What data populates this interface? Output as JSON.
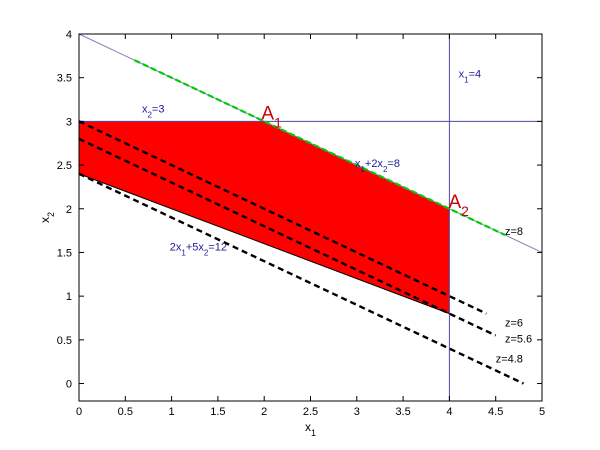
{
  "chart_data": {
    "type": "line",
    "title": "",
    "xlabel": "x",
    "xlabel_sub": "1",
    "ylabel": "x",
    "ylabel_sub": "2",
    "xlim": [
      0,
      5
    ],
    "ylim": [
      -0.2,
      4
    ],
    "xticks": [
      "0",
      "0.5",
      "1",
      "1.5",
      "2",
      "2.5",
      "3",
      "3.5",
      "4",
      "4.5",
      "5"
    ],
    "yticks": [
      "0",
      "0.5",
      "1",
      "1.5",
      "2",
      "2.5",
      "3",
      "3.5",
      "4"
    ],
    "grid": false,
    "feasible_region": {
      "color": "#ff0000",
      "vertices": [
        [
          0,
          2.4
        ],
        [
          0,
          3
        ],
        [
          2,
          3
        ],
        [
          4,
          2
        ],
        [
          4,
          0.8
        ]
      ]
    },
    "series": [
      {
        "style": "thin",
        "color": "#7f7fbf",
        "x": [
          0,
          5
        ],
        "y": [
          4,
          1.5
        ]
      },
      {
        "style": "thin",
        "color": "#4c4ca8",
        "x": [
          0,
          5
        ],
        "y": [
          3,
          3
        ]
      },
      {
        "style": "thin",
        "color": "#4c4ca8",
        "x": [
          4,
          4
        ],
        "y": [
          -0.2,
          4
        ]
      },
      {
        "style": "thin",
        "color": "#000000",
        "x": [
          0,
          4
        ],
        "y": [
          2.4,
          0.8
        ]
      },
      {
        "style": "green-dashed",
        "color": "#00cc00",
        "x": [
          0.6,
          4.6
        ],
        "y": [
          3.7,
          1.7
        ]
      },
      {
        "style": "black-dashed",
        "color": "#000000",
        "x": [
          0,
          4.4
        ],
        "y": [
          3,
          0.8
        ]
      },
      {
        "style": "black-dashed",
        "color": "#000000",
        "x": [
          0,
          4.5
        ],
        "y": [
          2.8,
          0.55
        ]
      },
      {
        "style": "black-dashed",
        "color": "#000000",
        "x": [
          0,
          4.8
        ],
        "y": [
          2.4,
          0
        ]
      }
    ],
    "annotations": [
      {
        "main": "x",
        "sub": "2",
        "rest": "=3",
        "x": 0.68,
        "y": 3.1,
        "color": "#1a1a99",
        "size": "small"
      },
      {
        "main": "x",
        "sub": "1",
        "rest": "=4",
        "x": 4.1,
        "y": 3.5,
        "color": "#1a1a99",
        "size": "small"
      },
      {
        "main": "x",
        "sub": "1",
        "rest": "+2x",
        "sub2": "2",
        "rest2": "=8",
        "x": 2.98,
        "y": 2.48,
        "color": "#1a1a99",
        "size": "small"
      },
      {
        "main": "2x",
        "sub": "1",
        "rest": "+5x",
        "sub2": "2",
        "rest2": "=12",
        "x": 0.98,
        "y": 1.52,
        "color": "#1a1a99",
        "size": "small"
      },
      {
        "main": "A",
        "sub": "1",
        "rest": "",
        "x": 1.97,
        "y": 3.02,
        "color": "#cc0000",
        "size": "big"
      },
      {
        "main": "A",
        "sub": "2",
        "rest": "",
        "x": 3.99,
        "y": 2.01,
        "color": "#cc0000",
        "size": "big"
      },
      {
        "main": "z=8",
        "sub": "",
        "rest": "",
        "x": 4.6,
        "y": 1.7,
        "color": "#000000",
        "size": "small"
      },
      {
        "main": "z=6",
        "sub": "",
        "rest": "",
        "x": 4.6,
        "y": 0.65,
        "color": "#000000",
        "size": "small"
      },
      {
        "main": "z=5.6",
        "sub": "",
        "rest": "",
        "x": 4.6,
        "y": 0.47,
        "color": "#000000",
        "size": "small"
      },
      {
        "main": "z=4.8",
        "sub": "",
        "rest": "",
        "x": 4.5,
        "y": 0.24,
        "color": "#000000",
        "size": "small"
      }
    ]
  }
}
